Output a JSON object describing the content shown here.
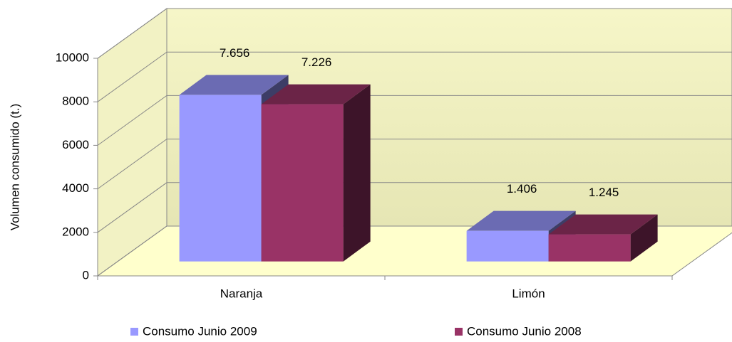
{
  "chart_data": {
    "type": "bar3d",
    "y_label": "Volumen consumido (t.)",
    "categories": [
      "Naranja",
      "Limón"
    ],
    "series": [
      {
        "name": "Consumo Junio 2009",
        "color": "#9999ff",
        "values": [
          7656,
          1406
        ],
        "value_labels": [
          "7.656",
          "1.406"
        ]
      },
      {
        "name": "Consumo Junio 2008",
        "color": "#993366",
        "values": [
          7226,
          1245
        ],
        "value_labels": [
          "7.226",
          "1.245"
        ]
      }
    ],
    "ylim": [
      0,
      10000
    ],
    "yticks": [
      0,
      2000,
      4000,
      6000,
      8000,
      10000
    ],
    "grid": true
  }
}
